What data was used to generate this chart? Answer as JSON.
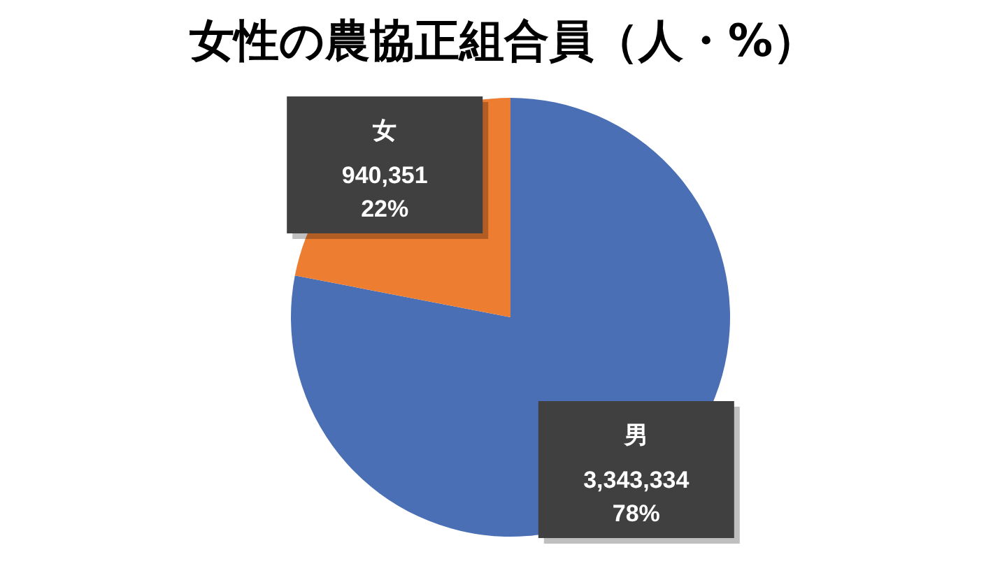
{
  "chart_data": {
    "type": "pie",
    "title": "女性の農協正組合員（人・%）",
    "categories": [
      "男",
      "女"
    ],
    "values": [
      3343334,
      940351
    ],
    "colors": [
      "#4a6fb5",
      "#ed7d31"
    ],
    "value_labels": [
      "3,343,334\n78%",
      "940,351\n22%"
    ],
    "legend": false
  }
}
